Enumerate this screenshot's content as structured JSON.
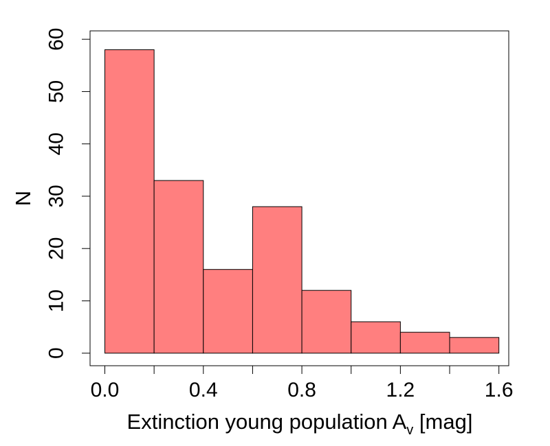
{
  "chart_data": {
    "type": "bar",
    "title": "",
    "xlabel_main": "Extinction young population A",
    "xlabel_sub": "v",
    "xlabel_tail": " [mag]",
    "ylabel": "N",
    "bin_edges": [
      0.0,
      0.2,
      0.4,
      0.6,
      0.8,
      1.0,
      1.2,
      1.4,
      1.6
    ],
    "values": [
      58,
      33,
      16,
      28,
      12,
      6,
      4,
      3
    ],
    "xlim": [
      -0.06,
      1.64
    ],
    "ylim": [
      -2.4,
      61.6
    ],
    "x_ticks": [
      0.0,
      0.4,
      0.8,
      1.2,
      1.6
    ],
    "x_tick_labels": [
      "0.0",
      "0.4",
      "0.8",
      "1.2",
      "1.6"
    ],
    "x_minor_ticks": [
      0.2,
      0.6,
      1.0,
      1.4
    ],
    "y_ticks": [
      0,
      10,
      20,
      30,
      40,
      50,
      60
    ],
    "y_tick_labels": [
      "0",
      "10",
      "20",
      "30",
      "40",
      "50",
      "60"
    ],
    "bar_color": "#ff7f7f",
    "edge_color": "#000000",
    "grid": false
  }
}
